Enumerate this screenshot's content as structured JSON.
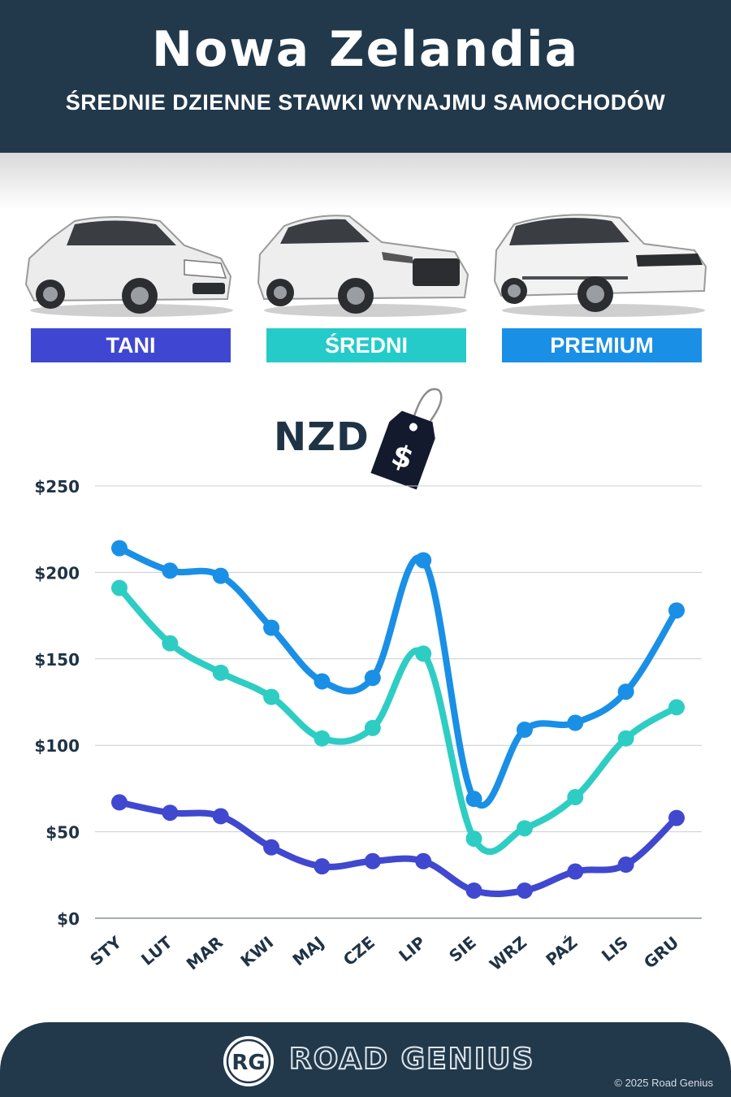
{
  "header": {
    "title": "Nowa Zelandia",
    "subtitle": "ŚREDNIE DZIENNE STAWKI WYNAJMU SAMOCHODÓW"
  },
  "categories_panel": [
    {
      "label": "TANI",
      "color": "#3f47d2",
      "icon": "hatchback-car-image"
    },
    {
      "label": "ŚREDNI",
      "color": "#24cbc8",
      "icon": "suv-car-image"
    },
    {
      "label": "PREMIUM",
      "color": "#1a8fe6",
      "icon": "luxury-suv-car-image"
    }
  ],
  "currency": {
    "label": "NZD",
    "tag_symbol": "$",
    "icon": "price-tag-icon"
  },
  "chart_data": {
    "type": "line",
    "categories": [
      "STY",
      "LUT",
      "MAR",
      "KWI",
      "MAJ",
      "CZE",
      "LIP",
      "SIE",
      "WRZ",
      "PAŹ",
      "LIS",
      "GRU"
    ],
    "series": [
      {
        "name": "PREMIUM",
        "color": "#1a8fe6",
        "values": [
          214,
          201,
          198,
          168,
          137,
          139,
          207,
          69,
          109,
          113,
          131,
          178
        ]
      },
      {
        "name": "ŚREDNI",
        "color": "#2ecdc4",
        "values": [
          191,
          159,
          142,
          128,
          104,
          110,
          153,
          46,
          52,
          70,
          104,
          122
        ]
      },
      {
        "name": "TANI",
        "color": "#4048d0",
        "values": [
          67,
          61,
          59,
          41,
          30,
          33,
          33,
          16,
          16,
          27,
          31,
          58
        ]
      }
    ],
    "yticks": [
      "$0",
      "$50",
      "$100",
      "$150",
      "$200",
      "$250"
    ],
    "ylim": [
      0,
      250
    ],
    "grid": true
  },
  "footer": {
    "logo_text": "RG",
    "brand": "ROAD GENIUS",
    "copyright": "© 2025 Road Genius"
  }
}
